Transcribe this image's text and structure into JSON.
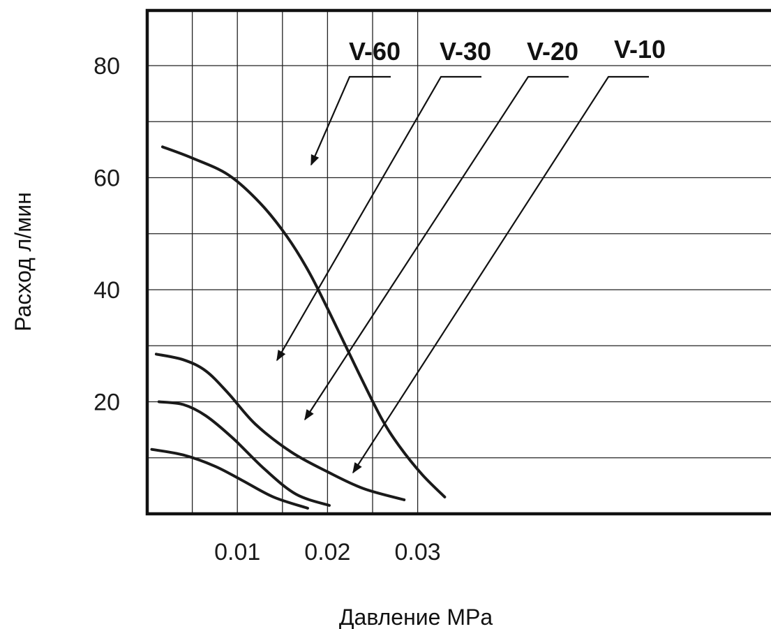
{
  "chart_data": {
    "type": "line",
    "xlabel": "Давление MPa",
    "ylabel": "Расход л/мин",
    "xlim": [
      0,
      0.0345
    ],
    "ylim": [
      0,
      90
    ],
    "xticks": [
      0.01,
      0.02,
      0.03
    ],
    "xtick_labels": [
      "0.01",
      "0.02",
      "0.03"
    ],
    "yticks": [
      20,
      40,
      60,
      80
    ],
    "ytick_labels": [
      "20",
      "40",
      "60",
      "80"
    ],
    "grid": true,
    "series": [
      {
        "name": "V-60",
        "x": [
          0.0017,
          0.005,
          0.009,
          0.0125,
          0.0155,
          0.018,
          0.0205,
          0.0235,
          0.026,
          0.028,
          0.0305,
          0.033
        ],
        "y": [
          65.5,
          63.5,
          60.5,
          55.5,
          49.5,
          43.0,
          35.0,
          25.0,
          17.0,
          12.0,
          7.0,
          3.0
        ]
      },
      {
        "name": "V-30",
        "x": [
          0.001,
          0.004,
          0.0065,
          0.009,
          0.012,
          0.016,
          0.02,
          0.024,
          0.0285
        ],
        "y": [
          28.5,
          27.5,
          25.5,
          21.5,
          16.0,
          11.0,
          7.5,
          4.5,
          2.5
        ]
      },
      {
        "name": "V-20",
        "x": [
          0.0013,
          0.004,
          0.0065,
          0.0095,
          0.013,
          0.0165,
          0.0202
        ],
        "y": [
          20.0,
          19.5,
          17.5,
          13.5,
          8.0,
          3.5,
          1.5
        ]
      },
      {
        "name": "V-10",
        "x": [
          0.0005,
          0.004,
          0.0075,
          0.0105,
          0.014,
          0.0178
        ],
        "y": [
          11.5,
          10.5,
          8.5,
          6.0,
          3.0,
          1.0
        ]
      }
    ],
    "legend": "labels with arrows above plot"
  }
}
